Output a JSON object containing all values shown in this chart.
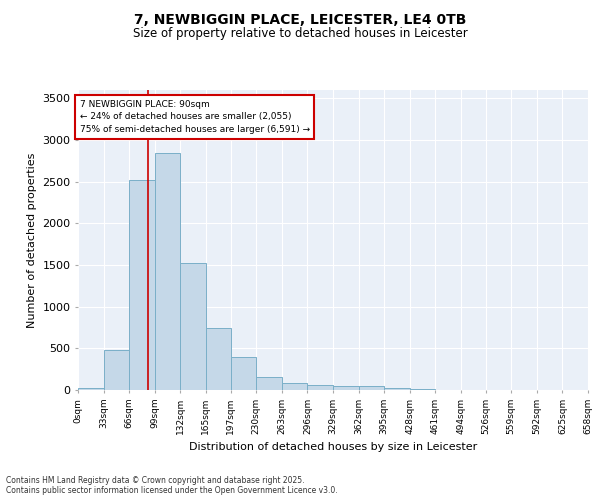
{
  "title_line1": "7, NEWBIGGIN PLACE, LEICESTER, LE4 0TB",
  "title_line2": "Size of property relative to detached houses in Leicester",
  "xlabel": "Distribution of detached houses by size in Leicester",
  "ylabel": "Number of detached properties",
  "bar_left_edges": [
    0,
    33,
    66,
    99,
    132,
    165,
    197,
    230,
    263,
    296,
    329,
    362,
    395,
    428,
    461,
    494,
    526,
    559,
    592,
    625
  ],
  "bar_widths": [
    33,
    33,
    33,
    33,
    33,
    33,
    33,
    33,
    33,
    33,
    33,
    33,
    33,
    33,
    33,
    33,
    33,
    33,
    33,
    33
  ],
  "bar_heights": [
    20,
    480,
    2520,
    2850,
    1530,
    740,
    395,
    155,
    80,
    60,
    50,
    50,
    20,
    10,
    5,
    5,
    3,
    2,
    1,
    1
  ],
  "bar_color": "#c5d8e8",
  "bar_edgecolor": "#7aafc8",
  "tick_labels": [
    "0sqm",
    "33sqm",
    "66sqm",
    "99sqm",
    "132sqm",
    "165sqm",
    "197sqm",
    "230sqm",
    "263sqm",
    "296sqm",
    "329sqm",
    "362sqm",
    "395sqm",
    "428sqm",
    "461sqm",
    "494sqm",
    "526sqm",
    "559sqm",
    "592sqm",
    "625sqm",
    "658sqm"
  ],
  "ylim": [
    0,
    3600
  ],
  "yticks": [
    0,
    500,
    1000,
    1500,
    2000,
    2500,
    3000,
    3500
  ],
  "property_size": 90,
  "vline_color": "#cc0000",
  "annotation_title": "7 NEWBIGGIN PLACE: 90sqm",
  "annotation_line2": "← 24% of detached houses are smaller (2,055)",
  "annotation_line3": "75% of semi-detached houses are larger (6,591) →",
  "annotation_box_color": "#cc0000",
  "annotation_box_facecolor": "white",
  "background_color": "#eaf0f8",
  "grid_color": "white",
  "footer_line1": "Contains HM Land Registry data © Crown copyright and database right 2025.",
  "footer_line2": "Contains public sector information licensed under the Open Government Licence v3.0."
}
